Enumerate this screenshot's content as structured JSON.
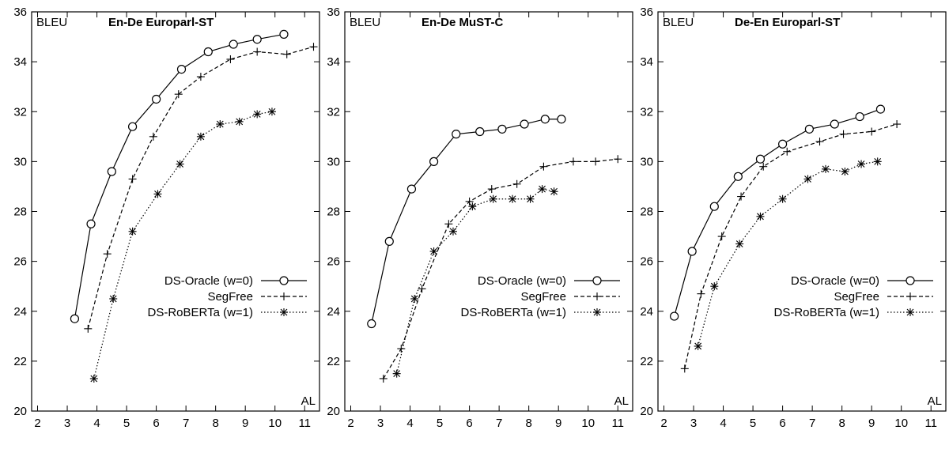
{
  "chart_data": [
    {
      "type": "line",
      "title": "En-De Europarl-ST",
      "xlabel": "AL",
      "ylabel": "BLEU",
      "xlim": [
        1.8,
        11.5
      ],
      "ylim": [
        20,
        36
      ],
      "xticks": [
        2,
        3,
        4,
        5,
        6,
        7,
        8,
        9,
        10,
        11
      ],
      "yticks": [
        20,
        22,
        24,
        26,
        28,
        30,
        32,
        34,
        36
      ],
      "legend_position": "right",
      "grid": false,
      "series": [
        {
          "name": "DS-Oracle (w=0)",
          "marker": "circle",
          "dash": "solid",
          "x": [
            3.25,
            3.8,
            4.5,
            5.2,
            6.0,
            6.85,
            7.75,
            8.6,
            9.4,
            10.3
          ],
          "y": [
            23.7,
            27.5,
            29.6,
            31.4,
            32.5,
            33.7,
            34.4,
            34.7,
            34.9,
            35.1
          ]
        },
        {
          "name": "SegFree",
          "marker": "plus",
          "dash": "dashed",
          "x": [
            3.7,
            4.35,
            5.2,
            5.9,
            6.75,
            7.5,
            8.5,
            9.4,
            10.4,
            11.3
          ],
          "y": [
            23.3,
            26.3,
            29.3,
            31.0,
            32.7,
            33.4,
            34.1,
            34.4,
            34.3,
            34.6
          ]
        },
        {
          "name": "DS-RoBERTa (w=1)",
          "marker": "star",
          "dash": "dotted",
          "x": [
            3.9,
            4.55,
            5.2,
            6.05,
            6.8,
            7.5,
            8.15,
            8.8,
            9.4,
            9.9
          ],
          "y": [
            21.3,
            24.5,
            27.2,
            28.7,
            29.9,
            31.0,
            31.5,
            31.6,
            31.9,
            32.0
          ]
        }
      ]
    },
    {
      "type": "line",
      "title": "En-De MuST-C",
      "xlabel": "AL",
      "ylabel": "BLEU",
      "xlim": [
        1.8,
        11.5
      ],
      "ylim": [
        20,
        36
      ],
      "xticks": [
        2,
        3,
        4,
        5,
        6,
        7,
        8,
        9,
        10,
        11
      ],
      "yticks": [
        20,
        22,
        24,
        26,
        28,
        30,
        32,
        34,
        36
      ],
      "legend_position": "right",
      "grid": false,
      "series": [
        {
          "name": "DS-Oracle (w=0)",
          "marker": "circle",
          "dash": "solid",
          "x": [
            2.7,
            3.3,
            4.05,
            4.8,
            5.55,
            6.35,
            7.1,
            7.85,
            8.55,
            9.1
          ],
          "y": [
            23.5,
            26.8,
            28.9,
            30.0,
            31.1,
            31.2,
            31.3,
            31.5,
            31.7,
            31.7
          ]
        },
        {
          "name": "SegFree",
          "marker": "plus",
          "dash": "dashed",
          "x": [
            3.1,
            3.7,
            4.4,
            5.3,
            6.0,
            6.75,
            7.6,
            8.5,
            9.5,
            10.25,
            11.0
          ],
          "y": [
            21.3,
            22.5,
            24.9,
            27.5,
            28.4,
            28.9,
            29.1,
            29.8,
            30.0,
            30.0,
            30.1
          ]
        },
        {
          "name": "DS-RoBERTa (w=1)",
          "marker": "star",
          "dash": "dotted",
          "x": [
            3.55,
            4.15,
            4.8,
            5.45,
            6.1,
            6.8,
            7.45,
            8.05,
            8.45,
            8.85
          ],
          "y": [
            21.5,
            24.5,
            26.4,
            27.2,
            28.2,
            28.5,
            28.5,
            28.5,
            28.9,
            28.8
          ]
        }
      ]
    },
    {
      "type": "line",
      "title": "De-En Europarl-ST",
      "xlabel": "AL",
      "ylabel": "BLEU",
      "xlim": [
        1.8,
        11.5
      ],
      "ylim": [
        20,
        36
      ],
      "xticks": [
        2,
        3,
        4,
        5,
        6,
        7,
        8,
        9,
        10,
        11
      ],
      "yticks": [
        20,
        22,
        24,
        26,
        28,
        30,
        32,
        34,
        36
      ],
      "legend_position": "right",
      "grid": false,
      "series": [
        {
          "name": "DS-Oracle (w=0)",
          "marker": "circle",
          "dash": "solid",
          "x": [
            2.35,
            2.95,
            3.7,
            4.5,
            5.25,
            6.0,
            6.9,
            7.75,
            8.6,
            9.3
          ],
          "y": [
            23.8,
            26.4,
            28.2,
            29.4,
            30.1,
            30.7,
            31.3,
            31.5,
            31.8,
            32.1
          ]
        },
        {
          "name": "SegFree",
          "marker": "plus",
          "dash": "dashed",
          "x": [
            2.7,
            3.25,
            3.95,
            4.6,
            5.35,
            6.15,
            7.25,
            8.05,
            9.0,
            9.85
          ],
          "y": [
            21.7,
            24.7,
            27.0,
            28.6,
            29.8,
            30.4,
            30.8,
            31.1,
            31.2,
            31.5
          ]
        },
        {
          "name": "DS-RoBERTa (w=1)",
          "marker": "star",
          "dash": "dotted",
          "x": [
            3.15,
            3.7,
            4.55,
            5.25,
            6.0,
            6.85,
            7.45,
            8.1,
            8.65,
            9.2
          ],
          "y": [
            22.6,
            25.0,
            26.7,
            27.8,
            28.5,
            29.3,
            29.7,
            29.6,
            29.9,
            30.0
          ]
        }
      ]
    }
  ]
}
